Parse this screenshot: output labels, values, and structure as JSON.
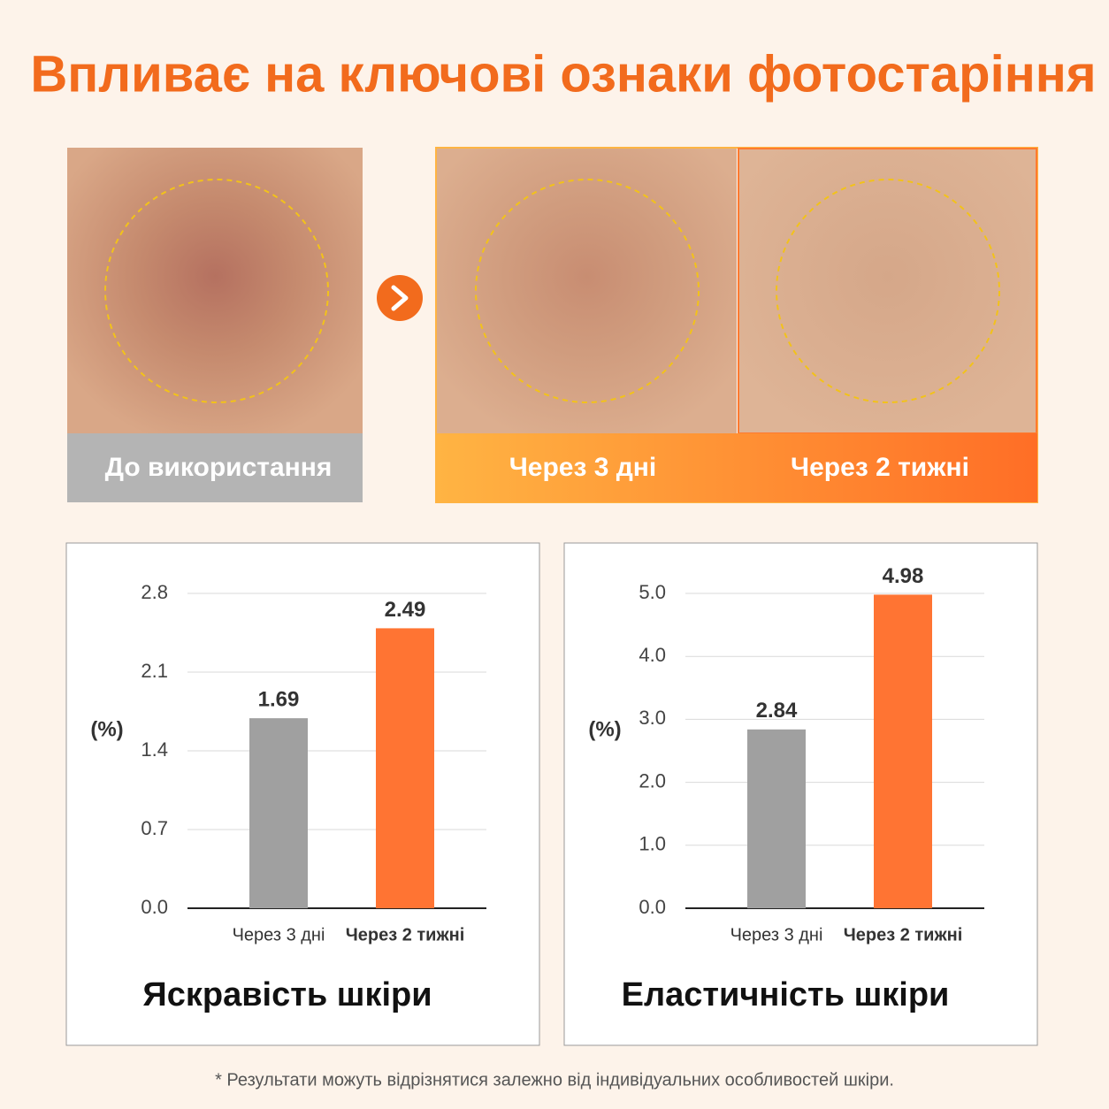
{
  "title": "Впливає на ключові ознаки фотостаріння",
  "panels": [
    {
      "label": "До використання"
    },
    {
      "label": "Через 3 дні"
    },
    {
      "label": "Через 2 тижні"
    }
  ],
  "chart_data": [
    {
      "type": "bar",
      "title": "Яскравість шкіри",
      "y_label": "(%)",
      "categories": [
        "Через 3 дні",
        "Через 2 тижні"
      ],
      "values": [
        1.69,
        2.49
      ],
      "colors": [
        "#a0a0a0",
        "#ff7433"
      ],
      "ylim": [
        0,
        2.8
      ],
      "yticks": [
        {
          "value": 0,
          "label": "0.0"
        },
        0.7,
        1.4,
        2.1,
        2.8
      ],
      "grid": true
    },
    {
      "type": "bar",
      "title": "Еластичність шкіри",
      "y_label": "(%)",
      "categories": [
        "Через 3 дні",
        "Через 2 тижні"
      ],
      "values": [
        2.84,
        4.98
      ],
      "colors": [
        "#a0a0a0",
        "#ff7433"
      ],
      "ylim": [
        0,
        5
      ],
      "yticks": [
        {
          "value": 0,
          "label": "0.0"
        },
        {
          "value": 1,
          "label": "1.0"
        },
        {
          "value": 2,
          "label": "2.0"
        },
        {
          "value": 3,
          "label": "3.0"
        },
        {
          "value": 4,
          "label": "4.0"
        },
        {
          "value": 5,
          "label": "5.0"
        }
      ],
      "grid": true
    }
  ],
  "footnote": "* Результати можуть відрізнятися залежно від індивідуальних особливостей шкіри."
}
